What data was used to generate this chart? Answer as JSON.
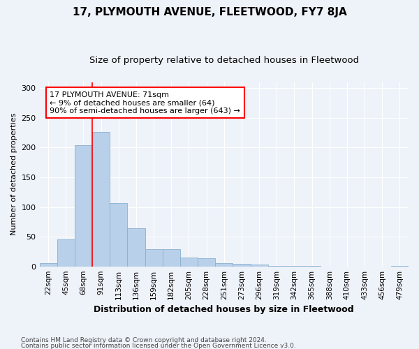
{
  "title": "17, PLYMOUTH AVENUE, FLEETWOOD, FY7 8JA",
  "subtitle": "Size of property relative to detached houses in Fleetwood",
  "xlabel": "Distribution of detached houses by size in Fleetwood",
  "ylabel": "Number of detached properties",
  "categories": [
    "22sqm",
    "45sqm",
    "68sqm",
    "91sqm",
    "113sqm",
    "136sqm",
    "159sqm",
    "182sqm",
    "205sqm",
    "228sqm",
    "251sqm",
    "273sqm",
    "296sqm",
    "319sqm",
    "342sqm",
    "365sqm",
    "388sqm",
    "410sqm",
    "433sqm",
    "456sqm",
    "479sqm"
  ],
  "values": [
    5,
    46,
    204,
    226,
    106,
    64,
    29,
    29,
    15,
    14,
    5,
    4,
    3,
    1,
    1,
    1,
    0,
    0,
    0,
    0,
    1
  ],
  "bar_color": "#b8d0ea",
  "bar_edge_color": "#8ab0d0",
  "red_line_x": 2.5,
  "annotation_line1": "17 PLYMOUTH AVENUE: 71sqm",
  "annotation_line2": "← 9% of detached houses are smaller (64)",
  "annotation_line3": "90% of semi-detached houses are larger (643) →",
  "ylim": [
    0,
    310
  ],
  "yticks": [
    0,
    50,
    100,
    150,
    200,
    250,
    300
  ],
  "bg_color": "#eef2f9",
  "plot_bg_color": "#eef2f9",
  "footer_line1": "Contains HM Land Registry data © Crown copyright and database right 2024.",
  "footer_line2": "Contains public sector information licensed under the Open Government Licence v3.0.",
  "title_fontsize": 11,
  "subtitle_fontsize": 9.5,
  "xlabel_fontsize": 9,
  "ylabel_fontsize": 8,
  "annotation_fontsize": 8
}
